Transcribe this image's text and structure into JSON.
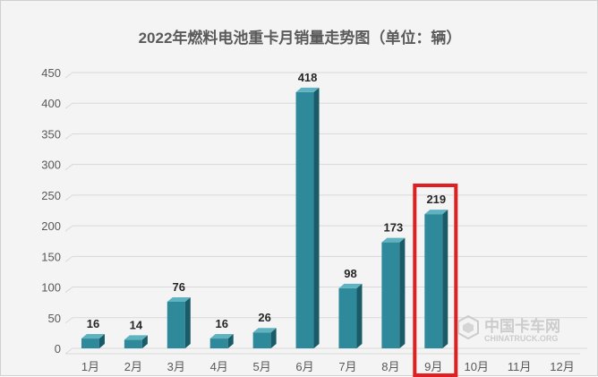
{
  "colors": {
    "bar_front": "#2e8a9b",
    "bar_side": "#1a5b67",
    "bar_top": "#5fb3c1",
    "grid": "#d9d9d9",
    "highlight_box": "#e02020"
  },
  "chart_data": {
    "type": "bar",
    "title": "2022年燃料电池重卡月销量走势图（单位：辆）",
    "categories": [
      "1月",
      "2月",
      "3月",
      "4月",
      "5月",
      "6月",
      "7月",
      "8月",
      "9月",
      "10月",
      "11月",
      "12月"
    ],
    "values": [
      16,
      14,
      76,
      16,
      26,
      418,
      98,
      173,
      219,
      null,
      null,
      null
    ],
    "data_labels": [
      "16",
      "14",
      "76",
      "16",
      "26",
      "418",
      "98",
      "173",
      "219",
      "",
      "",
      ""
    ],
    "ylim": [
      0,
      450
    ],
    "yticks": [
      0,
      50,
      100,
      150,
      200,
      250,
      300,
      350,
      400,
      450
    ],
    "grid": true,
    "legend": "none",
    "style": "3d-column",
    "highlight_category": "9月"
  },
  "watermark": {
    "name_cn": "中国卡车网",
    "name_en": "CHINATRUCK.ORG",
    "icon": "chinatruck-logo-icon"
  }
}
